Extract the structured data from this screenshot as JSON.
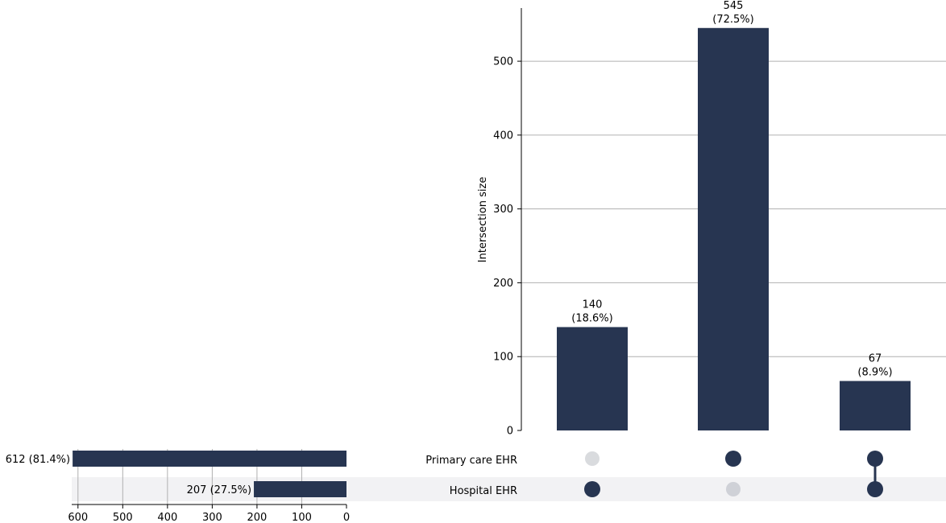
{
  "chart_data": [
    {
      "type": "bar",
      "role": "intersection-sizes",
      "ylabel": "Intersection size",
      "ylim": [
        0,
        572
      ],
      "yticks": [
        0,
        100,
        200,
        300,
        400,
        500
      ],
      "grid": true,
      "bars": [
        {
          "value": 140,
          "label": "140",
          "percent_label": "(18.6%)"
        },
        {
          "value": 545,
          "label": "545",
          "percent_label": "(72.5%)"
        },
        {
          "value": 67,
          "label": "67",
          "percent_label": "(8.9%)"
        }
      ],
      "matrix": [
        {
          "primary_care_ehr": false,
          "hospital_ehr": true
        },
        {
          "primary_care_ehr": true,
          "hospital_ehr": false
        },
        {
          "primary_care_ehr": true,
          "hospital_ehr": true
        }
      ]
    },
    {
      "type": "bar",
      "role": "set-sizes",
      "orientation": "horizontal",
      "xlim": [
        614,
        0
      ],
      "xticks": [
        600,
        500,
        400,
        300,
        200,
        100,
        0
      ],
      "grid": true,
      "sets": [
        {
          "key": "primary_care_ehr",
          "name": "Primary care EHR",
          "value": 612,
          "label": "612 (81.4%)"
        },
        {
          "key": "hospital_ehr",
          "name": "Hospital EHR",
          "value": 207,
          "label": "207 (27.5%)"
        }
      ]
    }
  ],
  "colors": {
    "bar": "#273551",
    "dot_active": "#273551",
    "dot_inactive_primary": "#d9dbde",
    "dot_inactive_hospital": "#cfd1d7",
    "stripe": "#f2f2f4",
    "grid": "#b0b0b0"
  }
}
